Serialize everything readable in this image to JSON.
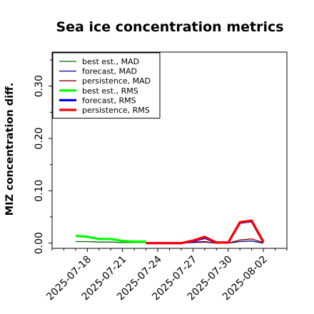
{
  "chart_data": {
    "type": "line",
    "title": "Sea ice concentration metrics",
    "xlabel": "",
    "ylabel": "MIZ concentration diff.",
    "ylim": [
      -0.01,
      0.365
    ],
    "xlim": [
      "2025-07-15",
      "2025-08-04"
    ],
    "yticks": [
      0.0,
      0.1,
      0.2,
      0.3
    ],
    "ytick_labels": [
      "0.00",
      "0.10",
      "0.20",
      "0.30"
    ],
    "xticks": [
      "2025-07-18",
      "2025-07-21",
      "2025-07-24",
      "2025-07-27",
      "2025-07-30",
      "2025-08-02"
    ],
    "highlighted_xtick": "2025-07-24",
    "highlight_color": "#2e8b2e",
    "grid": false,
    "legend_position": "top-left",
    "x": [
      "2025-07-17",
      "2025-07-18",
      "2025-07-19",
      "2025-07-20",
      "2025-07-21",
      "2025-07-22",
      "2025-07-23",
      "2025-07-24",
      "2025-07-25",
      "2025-07-26",
      "2025-07-27",
      "2025-07-28",
      "2025-07-29",
      "2025-07-30",
      "2025-07-31",
      "2025-08-01",
      "2025-08-02"
    ],
    "series": [
      {
        "name": "best est., MAD",
        "color": "#006400",
        "width": 1.3,
        "values": [
          0.003,
          0.003,
          0.002,
          0.002,
          0.001,
          0.001,
          0.001,
          null,
          null,
          null,
          null,
          null,
          null,
          null,
          null,
          null,
          null
        ]
      },
      {
        "name": "forecast,  MAD",
        "color": "#00008b",
        "width": 1.3,
        "values": [
          null,
          null,
          null,
          null,
          null,
          null,
          0.0,
          0.0,
          0.0,
          0.0,
          0.001,
          0.002,
          0.0,
          0.0,
          0.003,
          0.004,
          0.0
        ]
      },
      {
        "name": "persistence, MAD",
        "color": "#8b0000",
        "width": 1.3,
        "values": [
          null,
          null,
          null,
          null,
          null,
          null,
          0.0,
          0.0,
          0.0,
          0.0,
          0.002,
          0.003,
          0.0,
          0.0,
          0.006,
          0.008,
          0.001
        ]
      },
      {
        "name": "best est., RMS",
        "color": "#00ff00",
        "width": 3.2,
        "values": [
          0.014,
          0.012,
          0.008,
          0.008,
          0.004,
          0.003,
          0.003,
          null,
          null,
          null,
          null,
          null,
          null,
          null,
          null,
          null,
          null
        ]
      },
      {
        "name": "forecast,  RMS",
        "color": "#0000ff",
        "width": 3.2,
        "values": [
          null,
          null,
          null,
          null,
          null,
          null,
          0.0,
          0.0,
          0.0,
          0.0,
          0.004,
          0.01,
          0.001,
          0.001,
          0.039,
          0.042,
          0.002
        ]
      },
      {
        "name": "persistence, RMS",
        "color": "#ff0000",
        "width": 3.2,
        "values": [
          null,
          null,
          null,
          null,
          null,
          null,
          0.0,
          0.0,
          0.0,
          0.0,
          0.005,
          0.012,
          0.001,
          0.001,
          0.04,
          0.043,
          0.002
        ]
      }
    ]
  }
}
